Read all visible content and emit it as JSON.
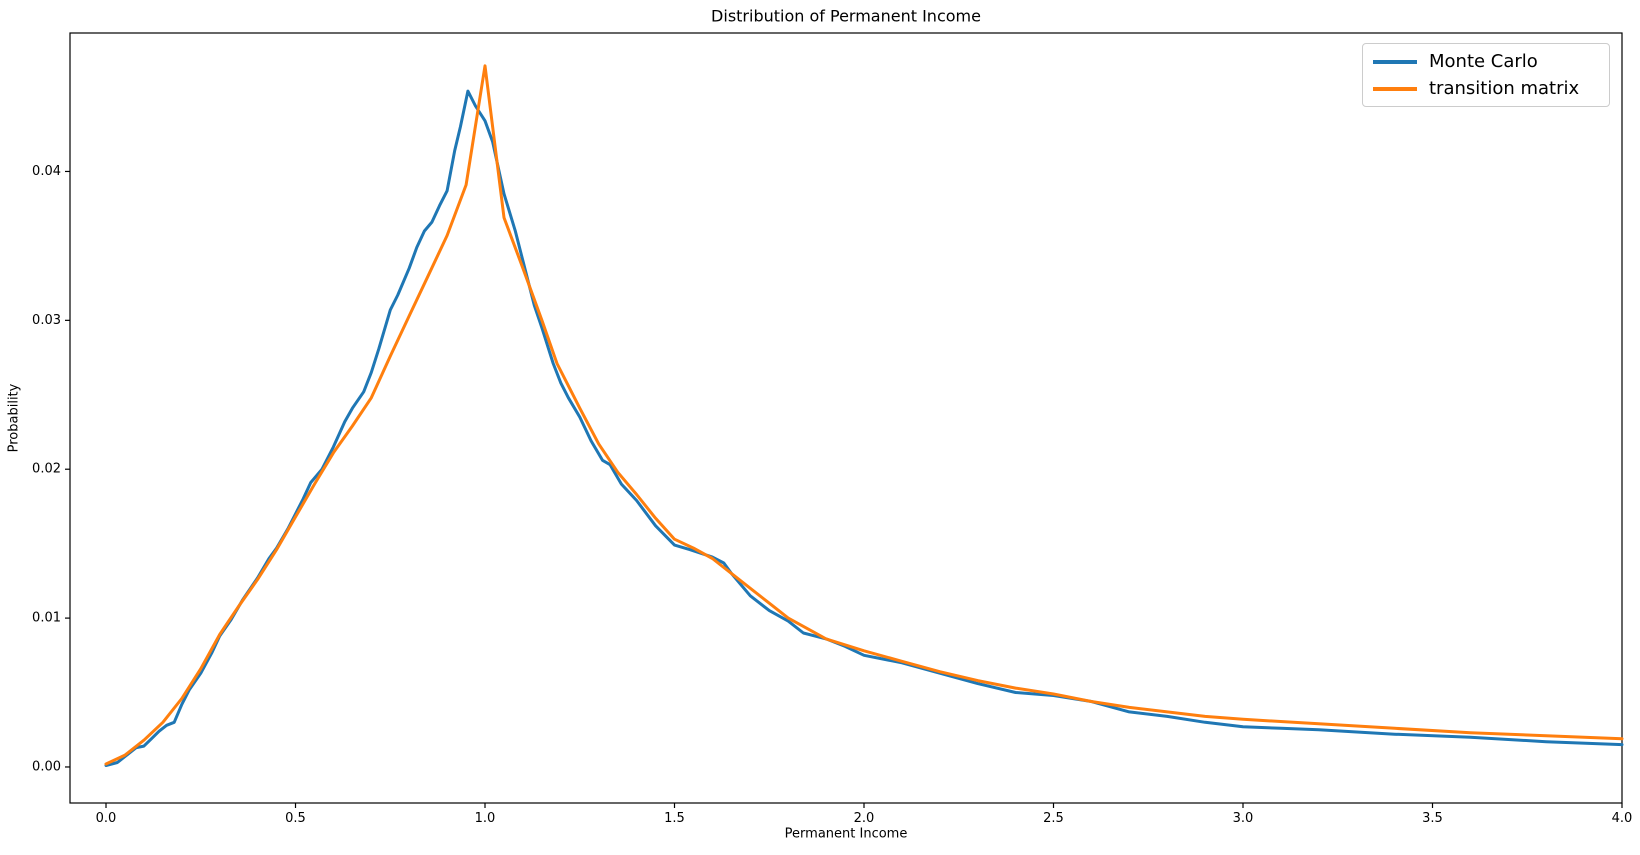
{
  "chart_data": {
    "type": "line",
    "title": "Distribution of Permanent Income",
    "xlabel": "Permanent Income",
    "ylabel": "Probability",
    "xlim": [
      -0.095,
      4.0
    ],
    "ylim": [
      -0.00242,
      0.0493
    ],
    "grid": false,
    "legend_position": "upper right",
    "xticks": {
      "values": [
        0.0,
        0.5,
        1.0,
        1.5,
        2.0,
        2.5,
        3.0,
        3.5,
        4.0
      ],
      "labels": [
        "0.0",
        "0.5",
        "1.0",
        "1.5",
        "2.0",
        "2.5",
        "3.0",
        "3.5",
        "4.0"
      ]
    },
    "yticks": {
      "values": [
        0.0,
        0.01,
        0.02,
        0.03,
        0.04
      ],
      "labels": [
        "0.00",
        "0.01",
        "0.02",
        "0.03",
        "0.04"
      ]
    },
    "series": [
      {
        "name": "Monte Carlo",
        "color": "#1f77b4",
        "linewidth": 3,
        "x": [
          0.0,
          0.03,
          0.06,
          0.08,
          0.1,
          0.12,
          0.14,
          0.16,
          0.18,
          0.2,
          0.22,
          0.25,
          0.28,
          0.3,
          0.33,
          0.36,
          0.4,
          0.43,
          0.45,
          0.48,
          0.5,
          0.52,
          0.54,
          0.57,
          0.6,
          0.63,
          0.65,
          0.68,
          0.7,
          0.72,
          0.75,
          0.77,
          0.8,
          0.82,
          0.84,
          0.86,
          0.88,
          0.9,
          0.92,
          0.935,
          0.955,
          0.975,
          1.0,
          1.02,
          1.05,
          1.08,
          1.1,
          1.13,
          1.15,
          1.18,
          1.2,
          1.22,
          1.25,
          1.28,
          1.31,
          1.33,
          1.36,
          1.4,
          1.45,
          1.5,
          1.54,
          1.6,
          1.63,
          1.65,
          1.7,
          1.73,
          1.75,
          1.8,
          1.84,
          1.9,
          1.95,
          2.0,
          2.1,
          2.2,
          2.3,
          2.4,
          2.5,
          2.6,
          2.7,
          2.8,
          2.9,
          3.0,
          3.1,
          3.2,
          3.4,
          3.6,
          3.8,
          4.0
        ],
        "y": [
          0.0001,
          0.0003,
          0.0009,
          0.0013,
          0.0014,
          0.0019,
          0.0024,
          0.0028,
          0.003,
          0.0042,
          0.0052,
          0.0063,
          0.0077,
          0.0088,
          0.0099,
          0.0112,
          0.0127,
          0.014,
          0.0147,
          0.016,
          0.017,
          0.018,
          0.0191,
          0.02,
          0.0215,
          0.0232,
          0.0241,
          0.0252,
          0.0265,
          0.0281,
          0.0307,
          0.0317,
          0.0335,
          0.0349,
          0.036,
          0.0366,
          0.0377,
          0.0387,
          0.0414,
          0.043,
          0.0454,
          0.0444,
          0.0434,
          0.042,
          0.0385,
          0.036,
          0.034,
          0.031,
          0.0295,
          0.0271,
          0.0258,
          0.0248,
          0.0235,
          0.0219,
          0.0206,
          0.0203,
          0.019,
          0.0179,
          0.0162,
          0.0149,
          0.0146,
          0.0141,
          0.0137,
          0.013,
          0.0115,
          0.0109,
          0.0105,
          0.0098,
          0.009,
          0.0086,
          0.0081,
          0.0075,
          0.007,
          0.0063,
          0.0056,
          0.005,
          0.0048,
          0.0044,
          0.0037,
          0.0034,
          0.003,
          0.0027,
          0.0026,
          0.0025,
          0.0022,
          0.002,
          0.0017,
          0.0015
        ]
      },
      {
        "name": "transition matrix",
        "color": "#ff7f0e",
        "linewidth": 3,
        "x": [
          0.0,
          0.05,
          0.1,
          0.15,
          0.2,
          0.25,
          0.3,
          0.35,
          0.4,
          0.45,
          0.5,
          0.55,
          0.6,
          0.65,
          0.7,
          0.75,
          0.8,
          0.85,
          0.9,
          0.95,
          1.0,
          1.05,
          1.1,
          1.15,
          1.19,
          1.25,
          1.3,
          1.35,
          1.4,
          1.45,
          1.5,
          1.55,
          1.6,
          1.65,
          1.7,
          1.75,
          1.8,
          1.9,
          2.0,
          2.1,
          2.2,
          2.3,
          2.4,
          2.5,
          2.6,
          2.7,
          2.8,
          2.9,
          3.0,
          3.2,
          3.4,
          3.6,
          3.8,
          4.0
        ],
        "y": [
          0.0002,
          0.0008,
          0.0018,
          0.003,
          0.0046,
          0.0066,
          0.0089,
          0.0108,
          0.0126,
          0.0146,
          0.0168,
          0.019,
          0.0211,
          0.0229,
          0.0248,
          0.0276,
          0.0303,
          0.033,
          0.0357,
          0.0391,
          0.0471,
          0.0369,
          0.0335,
          0.03,
          0.0271,
          0.0241,
          0.0217,
          0.0198,
          0.0183,
          0.0167,
          0.0153,
          0.0147,
          0.014,
          0.013,
          0.012,
          0.011,
          0.01,
          0.0086,
          0.0078,
          0.0071,
          0.0064,
          0.0058,
          0.0053,
          0.0049,
          0.0044,
          0.004,
          0.0037,
          0.0034,
          0.0032,
          0.0029,
          0.0026,
          0.0023,
          0.0021,
          0.0019
        ]
      }
    ]
  }
}
